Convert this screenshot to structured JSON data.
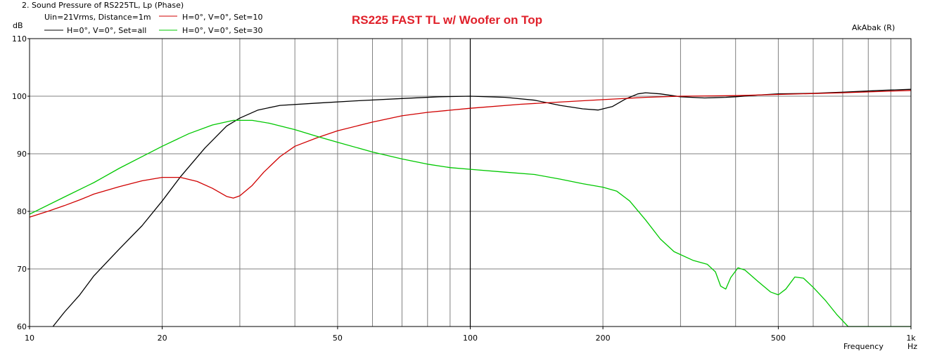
{
  "header": {
    "window_title": "2. Sound Pressure of RS225TL, Lp (Phase)",
    "info_line": "Uin=21Vrms, Distance=1m",
    "brand": "AkAbak (R)"
  },
  "colors": {
    "black_series": "#000000",
    "red_series": "#d00000",
    "green_series": "#00c800",
    "title_color": "#e0202a",
    "grid": "#808080"
  },
  "chart_data": {
    "type": "line",
    "title": "RS225 FAST TL w/ Woofer on Top",
    "xlabel": "Frequency",
    "xunit": "Hz",
    "ylabel": "dB",
    "xscale": "log",
    "xlim": [
      10,
      1000
    ],
    "ylim": [
      60,
      110
    ],
    "grid": true,
    "legend_position": "top-left",
    "y_ticks": [
      "110",
      "100",
      "90",
      "80",
      "70",
      "60"
    ],
    "x_ticks": [
      {
        "value": 10,
        "label": "10"
      },
      {
        "value": 20,
        "label": "20"
      },
      {
        "value": 50,
        "label": "50"
      },
      {
        "value": 100,
        "label": "100"
      },
      {
        "value": 200,
        "label": "200"
      },
      {
        "value": 500,
        "label": "500"
      },
      {
        "value": 1000,
        "label": "1k"
      }
    ],
    "series": [
      {
        "name": "H=0°, V=0°, Set=all",
        "color": "#000000",
        "points": [
          [
            11.3,
            60
          ],
          [
            12,
            62.5
          ],
          [
            13,
            65.5
          ],
          [
            14,
            68.8
          ],
          [
            16,
            73.5
          ],
          [
            18,
            77.5
          ],
          [
            20,
            81.8
          ],
          [
            22,
            86
          ],
          [
            25,
            91
          ],
          [
            28,
            94.8
          ],
          [
            30,
            96.2
          ],
          [
            33,
            97.6
          ],
          [
            37,
            98.4
          ],
          [
            45,
            98.8
          ],
          [
            55,
            99.2
          ],
          [
            70,
            99.6
          ],
          [
            85,
            99.9
          ],
          [
            100,
            100
          ],
          [
            120,
            99.8
          ],
          [
            140,
            99.3
          ],
          [
            160,
            98.4
          ],
          [
            180,
            97.8
          ],
          [
            195,
            97.6
          ],
          [
            210,
            98.2
          ],
          [
            225,
            99.5
          ],
          [
            240,
            100.4
          ],
          [
            250,
            100.6
          ],
          [
            270,
            100.4
          ],
          [
            300,
            99.9
          ],
          [
            340,
            99.7
          ],
          [
            380,
            99.8
          ],
          [
            400,
            99.9
          ],
          [
            450,
            100.2
          ],
          [
            500,
            100.4
          ],
          [
            600,
            100.5
          ],
          [
            700,
            100.7
          ],
          [
            850,
            101.0
          ],
          [
            1000,
            101.2
          ]
        ]
      },
      {
        "name": "H=0°, V=0°, Set=10",
        "color": "#d00000",
        "points": [
          [
            10,
            79
          ],
          [
            11,
            80
          ],
          [
            12,
            81
          ],
          [
            13,
            82
          ],
          [
            14,
            83
          ],
          [
            16,
            84.3
          ],
          [
            18,
            85.3
          ],
          [
            20,
            85.9
          ],
          [
            22,
            85.9
          ],
          [
            24,
            85.2
          ],
          [
            26,
            84
          ],
          [
            28,
            82.6
          ],
          [
            29,
            82.3
          ],
          [
            30,
            82.7
          ],
          [
            32,
            84.5
          ],
          [
            34,
            86.8
          ],
          [
            37,
            89.5
          ],
          [
            40,
            91.3
          ],
          [
            45,
            92.8
          ],
          [
            50,
            94
          ],
          [
            60,
            95.5
          ],
          [
            70,
            96.6
          ],
          [
            80,
            97.2
          ],
          [
            100,
            97.9
          ],
          [
            130,
            98.6
          ],
          [
            170,
            99.1
          ],
          [
            200,
            99.4
          ],
          [
            250,
            99.8
          ],
          [
            300,
            100
          ],
          [
            400,
            100.1
          ],
          [
            500,
            100.3
          ],
          [
            700,
            100.6
          ],
          [
            1000,
            101
          ]
        ]
      },
      {
        "name": "H=0°, V=0°, Set=30",
        "color": "#00c800",
        "points": [
          [
            10,
            79.5
          ],
          [
            12,
            82.5
          ],
          [
            14,
            85
          ],
          [
            16,
            87.5
          ],
          [
            18,
            89.5
          ],
          [
            20,
            91.3
          ],
          [
            23,
            93.5
          ],
          [
            26,
            95
          ],
          [
            29,
            95.8
          ],
          [
            32,
            95.8
          ],
          [
            35,
            95.3
          ],
          [
            40,
            94.2
          ],
          [
            45,
            93
          ],
          [
            50,
            92
          ],
          [
            60,
            90.3
          ],
          [
            70,
            89.1
          ],
          [
            80,
            88.2
          ],
          [
            90,
            87.6
          ],
          [
            100,
            87.3
          ],
          [
            120,
            86.8
          ],
          [
            140,
            86.4
          ],
          [
            160,
            85.6
          ],
          [
            180,
            84.8
          ],
          [
            200,
            84.2
          ],
          [
            215,
            83.5
          ],
          [
            230,
            81.8
          ],
          [
            250,
            78.5
          ],
          [
            270,
            75.2
          ],
          [
            290,
            73
          ],
          [
            320,
            71.5
          ],
          [
            345,
            70.8
          ],
          [
            360,
            69.5
          ],
          [
            370,
            67
          ],
          [
            380,
            66.5
          ],
          [
            390,
            68.5
          ],
          [
            405,
            70.2
          ],
          [
            420,
            69.8
          ],
          [
            450,
            67.8
          ],
          [
            480,
            66
          ],
          [
            500,
            65.5
          ],
          [
            520,
            66.5
          ],
          [
            545,
            68.6
          ],
          [
            570,
            68.4
          ],
          [
            600,
            66.8
          ],
          [
            640,
            64.5
          ],
          [
            680,
            62
          ],
          [
            720,
            60
          ],
          [
            800,
            60
          ],
          [
            1000,
            60
          ]
        ]
      }
    ]
  }
}
